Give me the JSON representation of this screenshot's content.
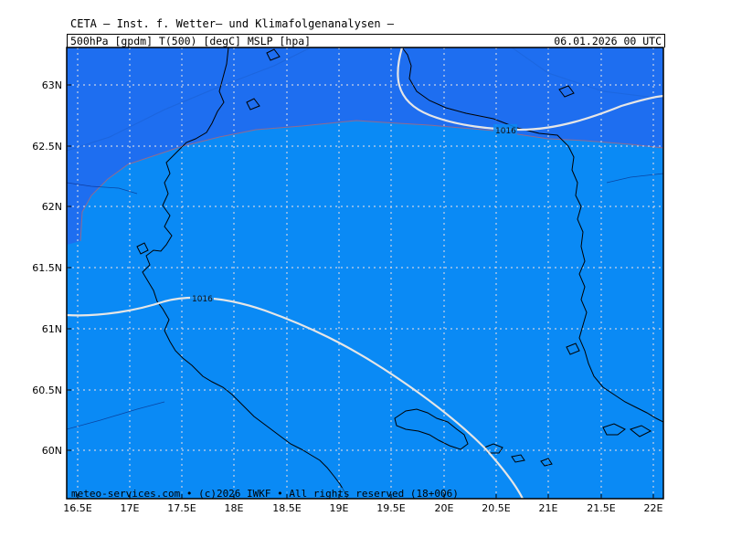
{
  "header": {
    "title": "CETA – Inst. f. Wetter– und Klimafolgenanalysen –",
    "subtitle_left": "500hPa [gpdm] T(500) [degC] MSLP [hpa]",
    "subtitle_right": "06.01.2026 00 UTC"
  },
  "map": {
    "lat_labels": [
      "63N",
      "62.5N",
      "62N",
      "61.5N",
      "61N",
      "60.5N",
      "60N"
    ],
    "lon_labels": [
      "16.5E",
      "17E",
      "17.5E",
      "18E",
      "18.5E",
      "19E",
      "19.5E",
      "20E",
      "20.5E",
      "21E",
      "21.5E",
      "22E"
    ],
    "isobar_labels": [
      "1016",
      "1016"
    ],
    "credit": "meteo-services.com • (c)2026 IWKF • All rights reserved (18+006)",
    "colors": {
      "cold_region": "#1e6ef0",
      "warm_region": "#0a8af5",
      "isobar": "#e6e6e6",
      "grid": "#c8d2e6",
      "coast": "#000000"
    }
  }
}
